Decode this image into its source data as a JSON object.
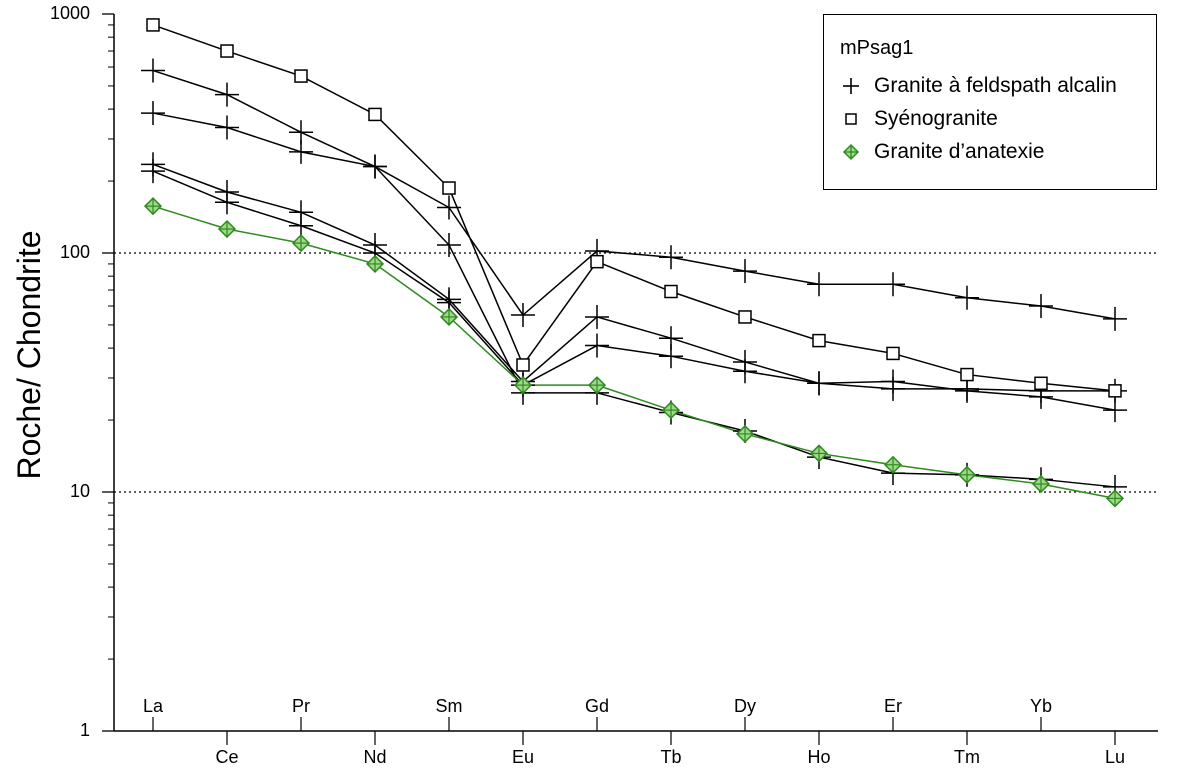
{
  "chart_data": {
    "type": "line",
    "scale": "log",
    "ylabel": "Roche/ Chondrite",
    "xlabel": "",
    "ylim": [
      1,
      1000
    ],
    "yticks": [
      1,
      10,
      100,
      1000
    ],
    "ytick_labels": [
      "1",
      "10",
      "100",
      "1000"
    ],
    "reference_lines": [
      10,
      100
    ],
    "categories": [
      "La",
      "Ce",
      "Pr",
      "Nd",
      "Sm",
      "Eu",
      "Gd",
      "Tb",
      "Dy",
      "Ho",
      "Er",
      "Tm",
      "Yb",
      "Lu"
    ],
    "legend": {
      "title": "mPsag1",
      "placement": "top-right",
      "entries": [
        {
          "label": "Granite à feldspath alcalin",
          "marker": "plus",
          "color": "#000000"
        },
        {
          "label": "Syénogranite",
          "marker": "square",
          "color": "#000000"
        },
        {
          "label": "Granite d’anatexie",
          "marker": "diamond-plus",
          "color": "#2e8b1e"
        }
      ]
    },
    "series": [
      {
        "name": "Granite à feldspath alcalin",
        "marker": "plus",
        "color": "#000000",
        "values": [
          580,
          460,
          320,
          230,
          155,
          55,
          102,
          96,
          84,
          74,
          74,
          65,
          60,
          53
        ]
      },
      {
        "name": "Granite à feldspath alcalin",
        "marker": "plus",
        "color": "#000000",
        "values": [
          385,
          335,
          265,
          230,
          108,
          26,
          26,
          21.5,
          18,
          14,
          12,
          11.8,
          11.3,
          10.5
        ]
      },
      {
        "name": "Granite à feldspath alcalin",
        "marker": "plus",
        "color": "#000000",
        "values": [
          235,
          180,
          148,
          108,
          64,
          29,
          54,
          44,
          35,
          28.5,
          29,
          26.5,
          25,
          22
        ]
      },
      {
        "name": "Granite à feldspath alcalin",
        "marker": "plus",
        "color": "#000000",
        "values": [
          220,
          163,
          130,
          100,
          62,
          28,
          41,
          37,
          32,
          28.5,
          27,
          27,
          26.5,
          26.5
        ]
      },
      {
        "name": "Syénogranite",
        "marker": "square",
        "color": "#000000",
        "values": [
          900,
          700,
          550,
          380,
          187,
          34,
          92,
          69,
          54,
          43,
          38,
          31,
          28.5,
          26.5
        ]
      },
      {
        "name": "Granite d’anatexie",
        "marker": "diamond-plus",
        "color": "#2e8b1e",
        "values": [
          157,
          126,
          110,
          90,
          54,
          28,
          28,
          22,
          17.5,
          14.5,
          13,
          11.8,
          10.8,
          9.4
        ]
      }
    ]
  }
}
